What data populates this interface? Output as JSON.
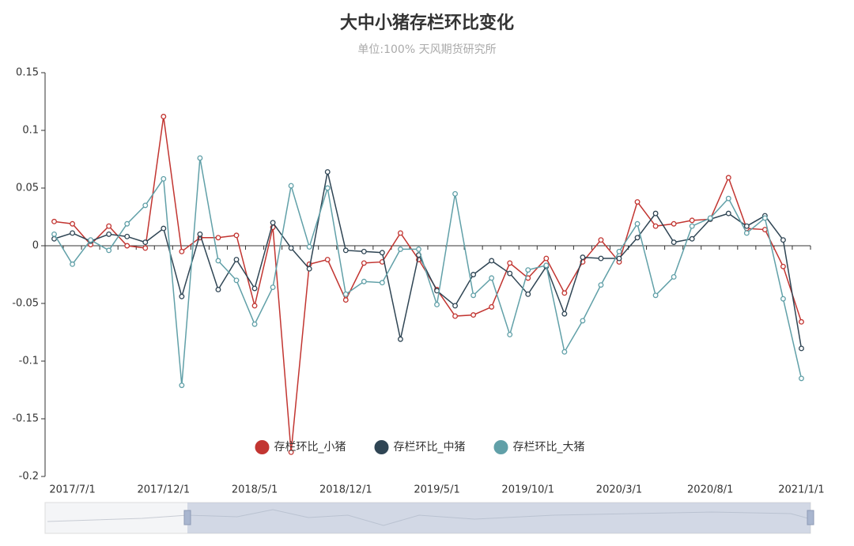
{
  "chart_data": {
    "type": "line",
    "title": "大中小猪存栏环比变化",
    "subtitle": "单位:100%  天风期货研究所",
    "categories": [
      null,
      "2017/7/1",
      null,
      null,
      null,
      null,
      "2017/12/1",
      null,
      null,
      null,
      null,
      "2018/5/1",
      null,
      null,
      null,
      null,
      "2018/12/1",
      null,
      null,
      null,
      null,
      "2019/5/1",
      null,
      null,
      null,
      null,
      "2019/10/1",
      null,
      null,
      null,
      null,
      "2020/3/1",
      null,
      null,
      null,
      null,
      "2020/8/1",
      null,
      null,
      null,
      null,
      "2021/1/1"
    ],
    "series": [
      {
        "name": "存栏环比_小猪",
        "color": "#c23531",
        "values": [
          0.021,
          0.019,
          0.001,
          0.017,
          0.0,
          -0.002,
          0.112,
          -0.005,
          0.007,
          0.007,
          0.009,
          -0.052,
          0.016,
          -0.179,
          -0.016,
          -0.012,
          -0.047,
          -0.015,
          -0.014,
          0.011,
          -0.012,
          -0.038,
          -0.061,
          -0.06,
          -0.053,
          -0.015,
          -0.028,
          -0.011,
          -0.041,
          -0.014,
          0.005,
          -0.014,
          0.038,
          0.017,
          0.019,
          0.022,
          0.023,
          0.059,
          0.015,
          0.014,
          -0.018,
          -0.066
        ]
      },
      {
        "name": "存栏环比_中猪",
        "color": "#2f4554",
        "values": [
          0.006,
          0.011,
          0.004,
          0.01,
          0.008,
          0.003,
          0.015,
          -0.044,
          0.01,
          -0.038,
          -0.012,
          -0.037,
          0.02,
          -0.002,
          -0.02,
          0.064,
          -0.004,
          -0.005,
          -0.006,
          -0.081,
          -0.008,
          -0.039,
          -0.052,
          -0.025,
          -0.013,
          -0.024,
          -0.042,
          -0.018,
          -0.059,
          -0.01,
          -0.011,
          -0.011,
          0.007,
          0.028,
          0.003,
          0.006,
          0.023,
          0.028,
          0.017,
          0.026,
          0.005,
          -0.089
        ]
      },
      {
        "name": "存栏环比_大猪",
        "color": "#61a0a8",
        "values": [
          0.01,
          -0.016,
          0.005,
          -0.004,
          0.019,
          0.035,
          0.058,
          -0.121,
          0.076,
          -0.013,
          -0.03,
          -0.068,
          -0.036,
          0.052,
          -0.001,
          0.05,
          -0.042,
          -0.031,
          -0.032,
          -0.003,
          -0.003,
          -0.051,
          0.045,
          -0.043,
          -0.028,
          -0.077,
          -0.021,
          -0.017,
          -0.092,
          -0.065,
          -0.034,
          -0.005,
          0.019,
          -0.043,
          -0.027,
          0.017,
          0.024,
          0.041,
          0.011,
          0.024,
          -0.046,
          -0.115
        ]
      }
    ],
    "ylim": [
      -0.2,
      0.15
    ],
    "yticks": [
      -0.2,
      -0.15,
      -0.1,
      -0.05,
      0,
      0.05,
      0.1,
      0.15
    ],
    "legend": "bottom"
  }
}
